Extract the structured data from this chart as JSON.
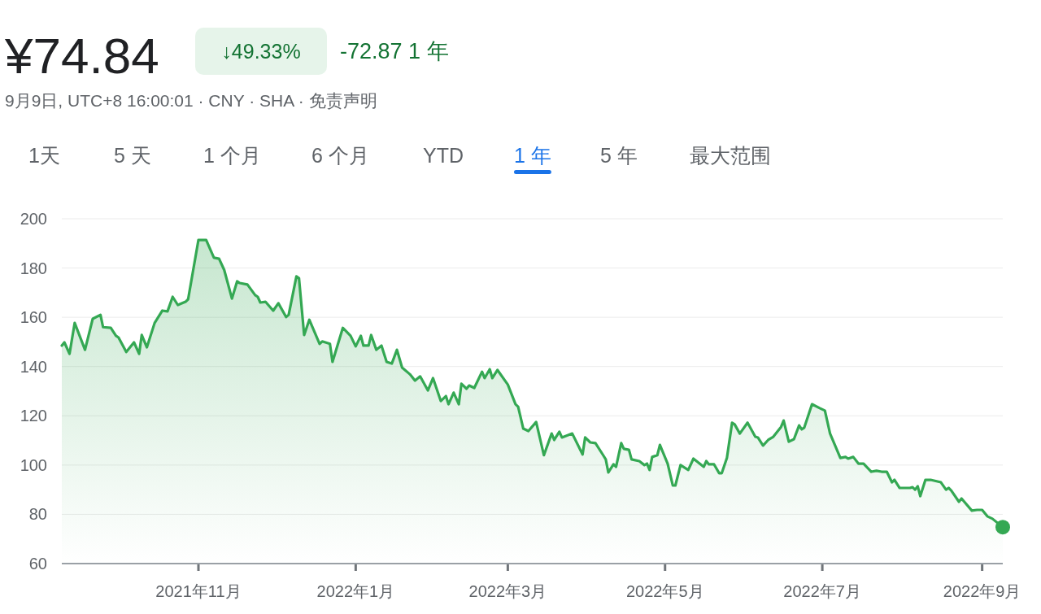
{
  "chart_data": {
    "type": "area",
    "title": "¥74.84",
    "subtitle": "9月9日, UTC+8 16:00:01 · CNY · SHA · 免责声明",
    "annotations": [
      "↓49.33%",
      "-72.87 1 年",
      "1天",
      "5 天",
      "1 个月",
      "6 个月",
      "YTD",
      "1 年",
      "5 年",
      "最大范围"
    ],
    "xlim": [
      "2021-09-09",
      "2022-09-09"
    ],
    "xticks": [
      {
        "value": "2021-11-01",
        "label": "2021年11月"
      },
      {
        "value": "2022-01-01",
        "label": "2022年1月"
      },
      {
        "value": "2022-03-01",
        "label": "2022年3月"
      },
      {
        "value": "2022-05-01",
        "label": "2022年5月"
      },
      {
        "value": "2022-07-01",
        "label": "2022年7月"
      },
      {
        "value": "2022-09-01",
        "label": "2022年9月"
      }
    ],
    "ylim": [
      60,
      200
    ],
    "yticks": [
      60,
      80,
      100,
      120,
      140,
      160,
      180,
      200
    ],
    "grid": "y",
    "series": [
      {
        "color": "#34a853",
        "x": [
          "2021-09-09",
          "2021-09-10",
          "2021-09-12",
          "2021-09-14",
          "2021-09-18",
          "2021-09-21",
          "2021-09-24",
          "2021-09-25",
          "2021-09-28",
          "2021-09-30",
          "2021-10-01",
          "2021-10-04",
          "2021-10-07",
          "2021-10-09",
          "2021-10-10",
          "2021-10-12",
          "2021-10-15",
          "2021-10-18",
          "2021-10-20",
          "2021-10-22",
          "2021-10-24",
          "2021-10-27",
          "2021-10-28",
          "2021-11-01",
          "2021-11-04",
          "2021-11-07",
          "2021-11-09",
          "2021-11-11",
          "2021-11-14",
          "2021-11-16",
          "2021-11-17",
          "2021-11-20",
          "2021-11-23",
          "2021-11-24",
          "2021-11-25",
          "2021-11-27",
          "2021-11-30",
          "2021-12-02",
          "2021-12-05",
          "2021-12-06",
          "2021-12-09",
          "2021-12-10",
          "2021-12-12",
          "2021-12-14",
          "2021-12-18",
          "2021-12-19",
          "2021-12-22",
          "2021-12-23",
          "2021-12-27",
          "2021-12-30",
          "2022-01-01",
          "2022-01-03",
          "2022-01-04",
          "2022-01-06",
          "2022-01-07",
          "2022-01-09",
          "2022-01-11",
          "2022-01-13",
          "2022-01-15",
          "2022-01-17",
          "2022-01-19",
          "2022-01-22",
          "2022-01-24",
          "2022-01-26",
          "2022-01-29",
          "2022-01-31",
          "2022-02-03",
          "2022-02-05",
          "2022-02-06",
          "2022-02-08",
          "2022-02-10",
          "2022-02-11",
          "2022-02-13",
          "2022-02-14",
          "2022-02-16",
          "2022-02-19",
          "2022-02-20",
          "2022-02-22",
          "2022-02-23",
          "2022-02-25",
          "2022-03-01",
          "2022-03-04",
          "2022-03-05",
          "2022-03-07",
          "2022-03-09",
          "2022-03-12",
          "2022-03-15",
          "2022-03-18",
          "2022-03-19",
          "2022-03-21",
          "2022-03-22",
          "2022-03-26",
          "2022-03-30",
          "2022-03-31",
          "2022-04-02",
          "2022-04-04",
          "2022-04-07",
          "2022-04-08",
          "2022-04-09",
          "2022-04-11",
          "2022-04-12",
          "2022-04-14",
          "2022-04-15",
          "2022-04-17",
          "2022-04-18",
          "2022-04-21",
          "2022-04-23",
          "2022-04-24",
          "2022-04-25",
          "2022-04-26",
          "2022-04-28",
          "2022-04-29",
          "2022-05-02",
          "2022-05-04",
          "2022-05-05",
          "2022-05-07",
          "2022-05-10",
          "2022-05-12",
          "2022-05-16",
          "2022-05-17",
          "2022-05-18",
          "2022-05-20",
          "2022-05-22",
          "2022-05-23",
          "2022-05-25",
          "2022-05-27",
          "2022-05-28",
          "2022-05-30",
          "2022-06-02",
          "2022-06-05",
          "2022-06-06",
          "2022-06-08",
          "2022-06-10",
          "2022-06-12",
          "2022-06-15",
          "2022-06-16",
          "2022-06-18",
          "2022-06-20",
          "2022-06-22",
          "2022-06-23",
          "2022-06-24",
          "2022-06-27",
          "2022-06-30",
          "2022-07-02",
          "2022-07-04",
          "2022-07-08",
          "2022-07-10",
          "2022-07-11",
          "2022-07-13",
          "2022-07-15",
          "2022-07-17",
          "2022-07-20",
          "2022-07-22",
          "2022-07-24",
          "2022-07-26",
          "2022-07-28",
          "2022-07-29",
          "2022-07-31",
          "2022-08-04",
          "2022-08-05",
          "2022-08-06",
          "2022-08-07",
          "2022-08-08",
          "2022-08-10",
          "2022-08-12",
          "2022-08-16",
          "2022-08-18",
          "2022-08-19",
          "2022-08-20",
          "2022-08-23",
          "2022-08-24",
          "2022-08-28",
          "2022-08-30",
          "2022-09-01",
          "2022-09-03",
          "2022-09-05",
          "2022-09-09"
        ],
        "values": [
          148.5,
          149.8,
          145.2,
          157.7,
          146.8,
          159.4,
          161,
          156,
          155.7,
          152.5,
          151.8,
          145.9,
          149.8,
          145.2,
          152.8,
          147.8,
          157.7,
          162.7,
          162.4,
          168.3,
          165,
          166.3,
          167.3,
          191.4,
          191.4,
          184.2,
          183.8,
          179.2,
          167.6,
          174.6,
          173.9,
          173.3,
          169,
          168.3,
          166,
          166.3,
          162.7,
          165.7,
          160.1,
          161,
          176.6,
          175.9,
          152.8,
          159,
          149.2,
          150.2,
          149.2,
          141.9,
          155.7,
          152.5,
          148.2,
          152.5,
          148.5,
          148.5,
          152.8,
          146.8,
          148.5,
          141.9,
          141.2,
          146.8,
          139.6,
          136.9,
          134.3,
          136,
          130.3,
          135.3,
          126,
          128,
          124.7,
          129.4,
          124.7,
          133,
          131,
          132.3,
          131.3,
          137.9,
          135.3,
          138.9,
          135.3,
          138.6,
          132.7,
          124.7,
          123.7,
          114.8,
          113.8,
          117.5,
          104,
          112.8,
          110.2,
          113.5,
          111.2,
          112.8,
          104.3,
          111.2,
          109.2,
          108.9,
          104,
          102.3,
          97,
          100.3,
          99.3,
          108.9,
          106.6,
          106.2,
          102.3,
          101.6,
          100,
          100.6,
          98,
          103.3,
          104,
          108.2,
          100.6,
          91.7,
          91.7,
          100,
          98,
          102.6,
          99.3,
          101.6,
          100.3,
          100.3,
          96.7,
          96.7,
          102.9,
          117.2,
          116.5,
          112.8,
          117.2,
          111.5,
          111.2,
          107.9,
          110.2,
          111.5,
          115.5,
          118.1,
          109.5,
          110.5,
          116.1,
          114.5,
          115.2,
          124.7,
          123.1,
          122.1,
          112.8,
          102.9,
          103.3,
          102.6,
          103.3,
          100.6,
          100.6,
          97.3,
          97.7,
          97.3,
          97.3,
          93,
          94,
          90.7,
          90.7,
          91,
          90,
          91.4,
          87.4,
          94,
          94,
          93,
          90,
          90.7,
          89.7,
          85.1,
          86.4,
          81.5,
          81.8,
          81.8,
          79.2,
          78.2,
          74.8
        ]
      },
      {
        "type": "scatter",
        "color": "#34a853",
        "marker": "circle",
        "x": [
          "2022-09-09"
        ],
        "values": [
          74.8
        ]
      }
    ]
  }
}
